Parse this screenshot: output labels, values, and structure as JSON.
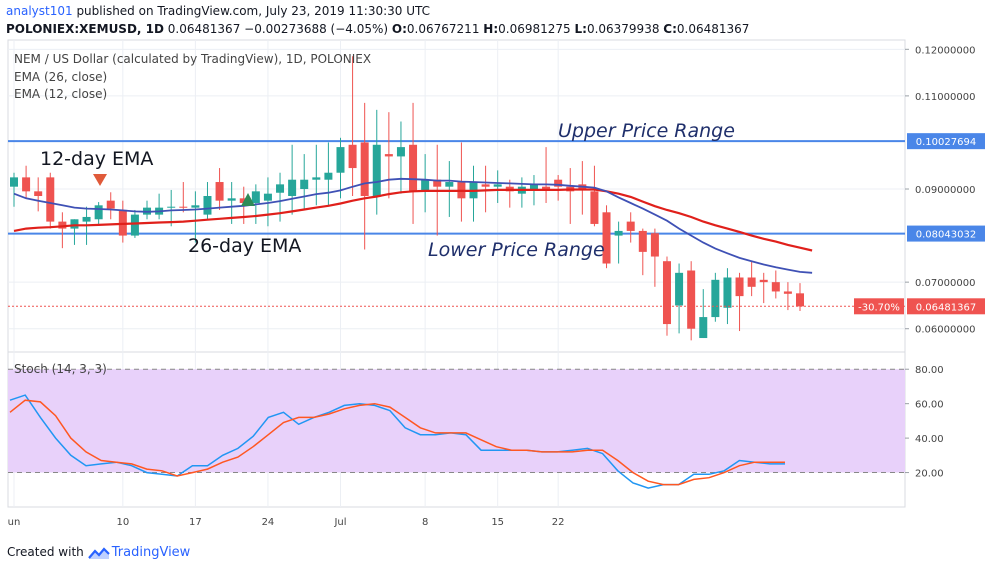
{
  "header": {
    "author": "analyst101",
    "published_text": "published on TradingView.com, July 23, 2019 11:30:30 UTC",
    "symbol_line": "POLONIEX:XEMUSD, 1D",
    "last": "0.06481367",
    "change": "−0.00273688 (−4.05%)",
    "o_label": "O:",
    "o_value": "0.06767211",
    "h_label": "H:",
    "h_value": "0.06981275",
    "l_label": "L:",
    "l_value": "0.06379938",
    "c_label": "C:",
    "c_value": "0.06481367"
  },
  "legend": {
    "title": "NEM / US Dollar (calculated by TradingView), 1D, POLONIEX",
    "ema26": "EMA (26, close)",
    "ema12": "EMA (12, close)",
    "stoch": "Stoch (14, 3, 3)"
  },
  "annotations": {
    "ema12": "12-day EMA",
    "ema26": "26-day EMA",
    "upper": "Upper Price Range",
    "lower": "Lower Price Range"
  },
  "footer": {
    "created_with": "Created with",
    "brand": "TradingView"
  },
  "colors": {
    "up": "#26a69a",
    "down": "#ef5350",
    "ema12": "#3f51b5",
    "ema26": "#e0201b",
    "hline": "#4a86e8",
    "stoch_k": "#2196f3",
    "stoch_d": "#ff5722",
    "stoch_bg": "#e8d1fa",
    "grid": "#eceff4"
  },
  "chart_data": [
    {
      "type": "candlestick",
      "ylim": [
        0.055,
        0.122
      ],
      "y_ticks": [
        "0.06000000",
        "0.07000000",
        "0.09000000",
        "0.11000000",
        "0.12000000"
      ],
      "x_ticks": [
        "un",
        "10",
        "17",
        "24",
        "Jul",
        "8",
        "15",
        "22"
      ],
      "ohlc": [
        [
          0.0905,
          0.0935,
          0.0862,
          0.0925
        ],
        [
          0.0925,
          0.095,
          0.088,
          0.0895
        ],
        [
          0.0895,
          0.0925,
          0.0852,
          0.0885
        ],
        [
          0.0925,
          0.0935,
          0.0815,
          0.083
        ],
        [
          0.083,
          0.085,
          0.0773,
          0.0815
        ],
        [
          0.0815,
          0.0835,
          0.078,
          0.0835
        ],
        [
          0.083,
          0.0862,
          0.078,
          0.084
        ],
        [
          0.0835,
          0.0872,
          0.0825,
          0.0865
        ],
        [
          0.0875,
          0.0893,
          0.0835,
          0.0858
        ],
        [
          0.0855,
          0.0875,
          0.0785,
          0.08
        ],
        [
          0.08,
          0.0855,
          0.0795,
          0.0845
        ],
        [
          0.0845,
          0.0875,
          0.0835,
          0.086
        ],
        [
          0.0845,
          0.089,
          0.0835,
          0.086
        ],
        [
          0.086,
          0.0898,
          0.082,
          0.0862
        ],
        [
          0.0862,
          0.0915,
          0.085,
          0.086
        ],
        [
          0.086,
          0.0895,
          0.0785,
          0.0865
        ],
        [
          0.0845,
          0.0915,
          0.0835,
          0.0885
        ],
        [
          0.0915,
          0.0945,
          0.0855,
          0.0875
        ],
        [
          0.0875,
          0.0915,
          0.0825,
          0.088
        ],
        [
          0.088,
          0.0905,
          0.0825,
          0.087
        ],
        [
          0.087,
          0.091,
          0.0825,
          0.0895
        ],
        [
          0.0875,
          0.0925,
          0.082,
          0.089
        ],
        [
          0.0892,
          0.0935,
          0.083,
          0.091
        ],
        [
          0.0885,
          0.0995,
          0.0845,
          0.092
        ],
        [
          0.09,
          0.0975,
          0.0855,
          0.092
        ],
        [
          0.092,
          0.0995,
          0.0865,
          0.0925
        ],
        [
          0.092,
          0.1,
          0.0865,
          0.0935
        ],
        [
          0.0935,
          0.101,
          0.088,
          0.099
        ],
        [
          0.0995,
          0.1185,
          0.0885,
          0.0945
        ],
        [
          0.1,
          0.1085,
          0.077,
          0.0885
        ],
        [
          0.0885,
          0.107,
          0.0845,
          0.0995
        ],
        [
          0.0975,
          0.1065,
          0.088,
          0.097
        ],
        [
          0.097,
          0.1045,
          0.089,
          0.099
        ],
        [
          0.0995,
          0.1085,
          0.0825,
          0.0895
        ],
        [
          0.0895,
          0.0975,
          0.085,
          0.092
        ],
        [
          0.092,
          0.0995,
          0.08,
          0.0905
        ],
        [
          0.0905,
          0.096,
          0.084,
          0.0915
        ],
        [
          0.0915,
          0.1,
          0.083,
          0.088
        ],
        [
          0.088,
          0.095,
          0.083,
          0.0915
        ],
        [
          0.091,
          0.095,
          0.085,
          0.0905
        ],
        [
          0.0905,
          0.094,
          0.087,
          0.091
        ],
        [
          0.0905,
          0.092,
          0.086,
          0.0895
        ],
        [
          0.089,
          0.0925,
          0.086,
          0.0905
        ],
        [
          0.09,
          0.093,
          0.0865,
          0.091
        ],
        [
          0.0905,
          0.099,
          0.087,
          0.09
        ],
        [
          0.092,
          0.093,
          0.0875,
          0.0905
        ],
        [
          0.0905,
          0.0945,
          0.0825,
          0.0895
        ],
        [
          0.091,
          0.096,
          0.0845,
          0.09
        ],
        [
          0.0895,
          0.095,
          0.082,
          0.0825
        ],
        [
          0.085,
          0.0865,
          0.073,
          0.074
        ],
        [
          0.08,
          0.083,
          0.074,
          0.081
        ],
        [
          0.083,
          0.085,
          0.0785,
          0.081
        ],
        [
          0.081,
          0.0815,
          0.0715,
          0.0765
        ],
        [
          0.0805,
          0.0815,
          0.069,
          0.0755
        ],
        [
          0.0745,
          0.0755,
          0.0585,
          0.061
        ],
        [
          0.065,
          0.074,
          0.059,
          0.072
        ],
        [
          0.0725,
          0.0745,
          0.0575,
          0.06
        ],
        [
          0.058,
          0.0685,
          0.058,
          0.0625
        ],
        [
          0.0625,
          0.072,
          0.0615,
          0.0705
        ],
        [
          0.0645,
          0.073,
          0.061,
          0.071
        ],
        [
          0.071,
          0.072,
          0.0595,
          0.067
        ],
        [
          0.071,
          0.0745,
          0.067,
          0.069
        ],
        [
          0.0705,
          0.072,
          0.0655,
          0.07
        ],
        [
          0.07,
          0.0725,
          0.0665,
          0.068
        ],
        [
          0.068,
          0.07,
          0.064,
          0.0675
        ],
        [
          0.0676,
          0.0698,
          0.0638,
          0.0648
        ]
      ],
      "ema12": [
        0.089,
        0.088,
        0.0875,
        0.087,
        0.0865,
        0.086,
        0.0858,
        0.0857,
        0.0856,
        0.0854,
        0.0852,
        0.0851,
        0.0852,
        0.0854,
        0.0855,
        0.0856,
        0.0858,
        0.086,
        0.0862,
        0.0864,
        0.0867,
        0.087,
        0.0874,
        0.0879,
        0.0884,
        0.0889,
        0.0892,
        0.0897,
        0.0905,
        0.0912,
        0.0915,
        0.092,
        0.0922,
        0.0921,
        0.092,
        0.0918,
        0.0918,
        0.0916,
        0.0915,
        0.0914,
        0.0913,
        0.0912,
        0.0911,
        0.091,
        0.091,
        0.0909,
        0.0907,
        0.0905,
        0.0903,
        0.0895,
        0.0882,
        0.087,
        0.0858,
        0.0845,
        0.0832,
        0.0815,
        0.08,
        0.0785,
        0.0772,
        0.0762,
        0.0752,
        0.0745,
        0.0738,
        0.0732,
        0.0727,
        0.0722,
        0.072
      ],
      "ema26": [
        0.081,
        0.0815,
        0.0817,
        0.0818,
        0.082,
        0.0822,
        0.0822,
        0.0823,
        0.0824,
        0.0825,
        0.0826,
        0.0827,
        0.0828,
        0.0829,
        0.083,
        0.0832,
        0.0834,
        0.0836,
        0.0838,
        0.084,
        0.0842,
        0.0845,
        0.0848,
        0.0852,
        0.0856,
        0.086,
        0.0864,
        0.0869,
        0.0875,
        0.088,
        0.0884,
        0.0889,
        0.0893,
        0.0895,
        0.0896,
        0.0896,
        0.0896,
        0.0896,
        0.0896,
        0.0897,
        0.0898,
        0.0898,
        0.0898,
        0.0898,
        0.0898,
        0.0898,
        0.0899,
        0.0899,
        0.0899,
        0.0895,
        0.089,
        0.0883,
        0.0873,
        0.0863,
        0.0855,
        0.0848,
        0.084,
        0.083,
        0.0822,
        0.0815,
        0.0808,
        0.08,
        0.0793,
        0.0787,
        0.078,
        0.0774,
        0.0768
      ],
      "hlines": [
        {
          "label": "Upper Price Range",
          "value": 0.10027694,
          "tag": "0.10027694"
        },
        {
          "label": "Lower Price Range",
          "value": 0.08043032,
          "tag": "0.08043032"
        }
      ],
      "last_price": {
        "value": 0.06481367,
        "tag": "0.06481367",
        "pct_tag": "-30.70%"
      }
    },
    {
      "type": "line",
      "ylim": [
        0,
        90
      ],
      "y_ticks": [
        "80.00",
        "60.00",
        "40.00",
        "20.00"
      ],
      "band": [
        20,
        80
      ],
      "series": [
        {
          "name": "%K",
          "values": [
            62,
            65,
            52,
            40,
            30,
            24,
            25,
            26,
            24,
            20,
            19,
            18,
            24,
            24,
            30,
            34,
            41,
            52,
            55,
            48,
            52,
            55,
            59,
            60,
            59,
            56,
            46,
            42,
            42,
            43,
            42,
            33,
            33,
            33,
            33,
            32,
            32,
            33,
            34,
            31,
            21,
            14,
            11,
            13,
            13,
            19,
            19,
            21,
            27,
            26,
            25,
            25
          ]
        },
        {
          "name": "%D",
          "values": [
            55,
            62,
            61,
            53,
            40,
            32,
            27,
            26,
            25,
            22,
            21,
            18,
            20,
            22,
            26,
            29,
            35,
            42,
            49,
            52,
            52,
            54,
            57,
            59,
            60,
            58,
            52,
            46,
            43,
            43,
            43,
            39,
            35,
            33,
            33,
            32,
            32,
            32,
            33,
            33,
            27,
            20,
            15,
            13,
            13,
            16,
            17,
            20,
            24,
            26,
            26,
            26
          ]
        }
      ]
    }
  ]
}
